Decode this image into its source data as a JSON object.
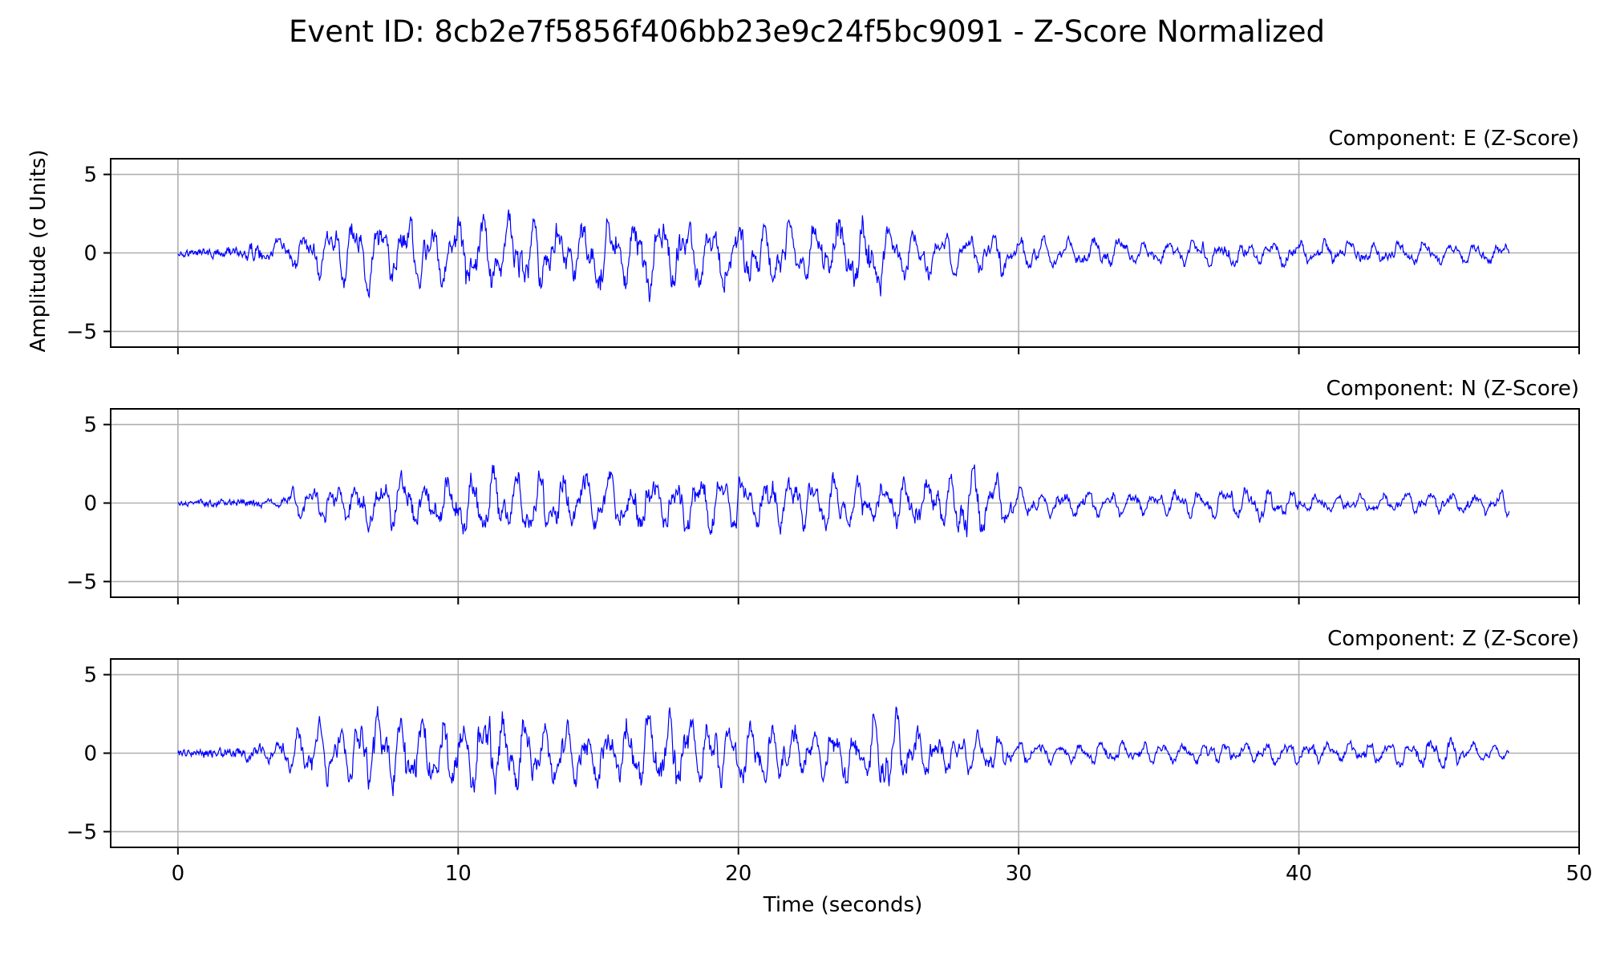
{
  "chart_data": {
    "type": "line",
    "title": "Event ID: 8cb2e7f5856f406bb23e9c24f5bc9091 - Z-Score Normalized",
    "xlabel": "Time (seconds)",
    "ylabel": "Amplitude (σ Units)",
    "xlim": [
      -2.4,
      50
    ],
    "ylim": [
      -6,
      6
    ],
    "x_ticks": [
      0,
      10,
      20,
      30,
      40,
      50
    ],
    "y_ticks": [
      5,
      0,
      -5
    ],
    "y_tick_labels": [
      "5",
      "0",
      "−5"
    ],
    "grid": true,
    "line_color": "#0000ff",
    "sample_rate_hz": 40,
    "panels": [
      {
        "title": "Component: E (Z-Score)",
        "component": "E",
        "envelope": [
          [
            0,
            0.3
          ],
          [
            2,
            0.4
          ],
          [
            3.5,
            1.2
          ],
          [
            5,
            1.9
          ],
          [
            6,
            3.0
          ],
          [
            8,
            3.1
          ],
          [
            10,
            3.0
          ],
          [
            12,
            3.2
          ],
          [
            14,
            2.9
          ],
          [
            17,
            3.4
          ],
          [
            20,
            2.8
          ],
          [
            22,
            2.4
          ],
          [
            25,
            3.3
          ],
          [
            26,
            2.3
          ],
          [
            28,
            1.8
          ],
          [
            30,
            1.9
          ],
          [
            31,
            1.3
          ],
          [
            35,
            1.1
          ],
          [
            40,
            1.2
          ],
          [
            47.5,
            0.9
          ]
        ]
      },
      {
        "title": "Component: N (Z-Score)",
        "component": "N",
        "envelope": [
          [
            0,
            0.2
          ],
          [
            3.5,
            0.4
          ],
          [
            4,
            1.3
          ],
          [
            6,
            1.9
          ],
          [
            8,
            2.5
          ],
          [
            10,
            2.8
          ],
          [
            12,
            3.0
          ],
          [
            15,
            2.7
          ],
          [
            18,
            2.6
          ],
          [
            20,
            2.5
          ],
          [
            22,
            2.3
          ],
          [
            25,
            2.0
          ],
          [
            27,
            2.3
          ],
          [
            28.5,
            3.3
          ],
          [
            29.5,
            2.0
          ],
          [
            30,
            1.3
          ],
          [
            35,
            1.1
          ],
          [
            39,
            1.5
          ],
          [
            41,
            0.8
          ],
          [
            47.5,
            1.0
          ]
        ]
      },
      {
        "title": "Component: Z (Z-Score)",
        "component": "Z",
        "envelope": [
          [
            0,
            0.3
          ],
          [
            3,
            0.6
          ],
          [
            4,
            1.8
          ],
          [
            5.5,
            2.8
          ],
          [
            7,
            3.6
          ],
          [
            9,
            3.0
          ],
          [
            11.5,
            3.8
          ],
          [
            13,
            3.0
          ],
          [
            15,
            2.8
          ],
          [
            17,
            3.5
          ],
          [
            19,
            2.8
          ],
          [
            21,
            2.3
          ],
          [
            23,
            2.0
          ],
          [
            25.5,
            3.4
          ],
          [
            26.5,
            2.2
          ],
          [
            29,
            1.8
          ],
          [
            30,
            0.9
          ],
          [
            35,
            1.0
          ],
          [
            40,
            1.0
          ],
          [
            44,
            1.2
          ],
          [
            45,
            1.4
          ],
          [
            47.5,
            0.5
          ]
        ]
      }
    ]
  }
}
